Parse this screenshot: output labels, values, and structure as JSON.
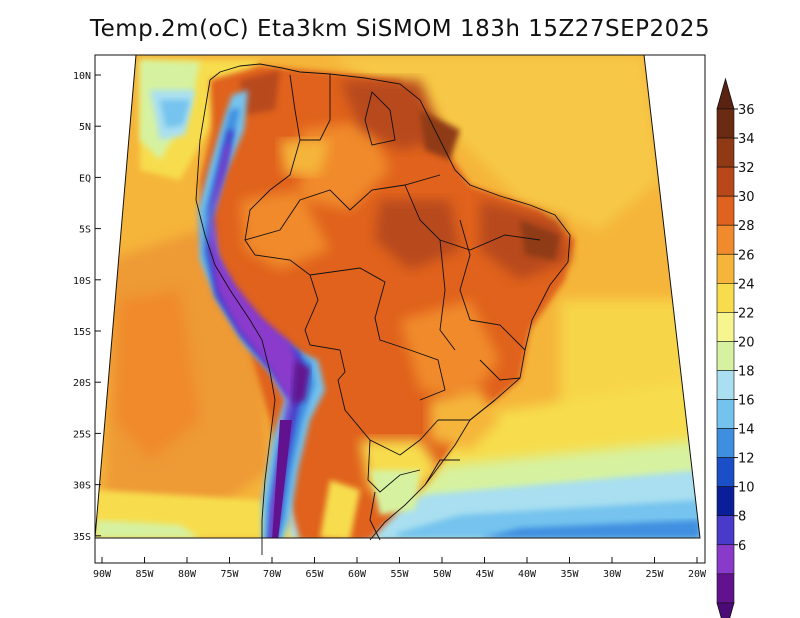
{
  "title": "Temp.2m(oC) Eta3km SiSMOM 183h 15Z27SEP2025",
  "map": {
    "lat_labels": [
      "10N",
      "5N",
      "EQ",
      "5S",
      "10S",
      "15S",
      "20S",
      "25S",
      "30S",
      "35S"
    ],
    "lon_labels": [
      "90W",
      "85W",
      "80W",
      "75W",
      "70W",
      "65W",
      "60W",
      "55W",
      "50W",
      "45W",
      "40W",
      "35W",
      "30W",
      "25W",
      "20W"
    ]
  },
  "colorbar": {
    "labels": [
      "36",
      "34",
      "32",
      "30",
      "28",
      "26",
      "24",
      "22",
      "20",
      "18",
      "16",
      "14",
      "12",
      "10",
      "8",
      "6"
    ],
    "colors": [
      "#6b2a12",
      "#8f3a14",
      "#b8481a",
      "#e0621f",
      "#f08a2c",
      "#f5b53a",
      "#f7dd4e",
      "#f7f58e",
      "#d6f2a0",
      "#a9dff0",
      "#74c3ee",
      "#3f8fe0",
      "#1a4fc8",
      "#0a1e9a",
      "#4a3ac9",
      "#8a3acb",
      "#62128f"
    ],
    "over_color": "#5a2210",
    "under_color": "#4b0a76"
  }
}
